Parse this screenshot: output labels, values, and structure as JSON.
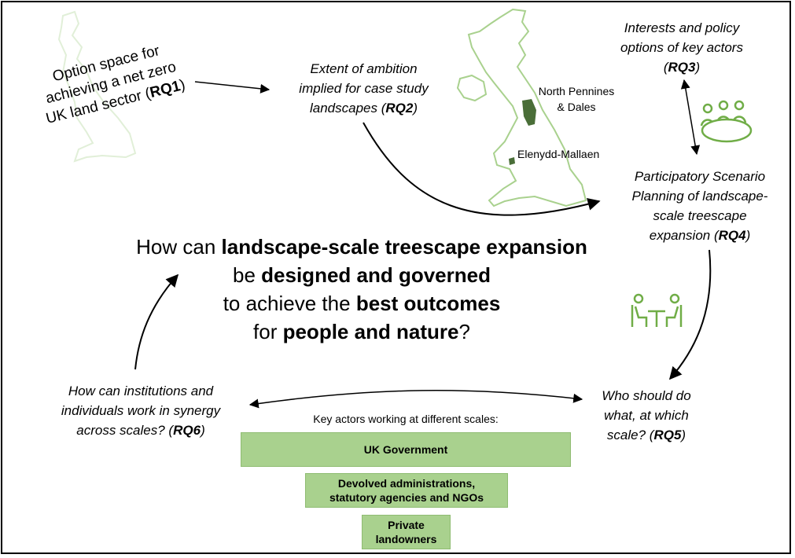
{
  "rq1": {
    "line1": "Option space for",
    "line2": "achieving a net zero",
    "line3_pre": "UK land sector (",
    "line3_bold": "RQ1",
    "line3_post": ")"
  },
  "rq2": {
    "line1": "Extent of ambition",
    "line2": "implied for case study",
    "line3_pre": "landscapes (",
    "line3_bold": "RQ2",
    "line3_post": ")"
  },
  "rq3": {
    "line1": "Interests and policy",
    "line2": "options of key actors",
    "line3_pre": "(",
    "line3_bold": "RQ3",
    "line3_post": ")"
  },
  "rq4": {
    "line1": "Participatory Scenario",
    "line2": "Planning of landscape-",
    "line3": "scale treescape",
    "line4_pre": "expansion (",
    "line4_bold": "RQ4",
    "line4_post": ")"
  },
  "rq5": {
    "line1": "Who should do",
    "line2": "what, at which",
    "line3_pre": "scale? (",
    "line3_bold": "RQ5",
    "line3_post": ")"
  },
  "rq6": {
    "line1": "How can institutions and",
    "line2": "individuals work in synergy",
    "line3_pre": "across scales? (",
    "line3_bold": "RQ6",
    "line3_post": ")"
  },
  "map_labels": {
    "north": "North Pennines",
    "north2": "& Dales",
    "wales": "Elenydd-Mallaen"
  },
  "central": {
    "l1_pre": "How can ",
    "l1_bold": "landscape-scale treescape expansion",
    "l2_pre": "be ",
    "l2_bold": "designed and governed",
    "l3_pre": "to achieve the ",
    "l3_bold": "best outcomes",
    "l4_pre": "for ",
    "l4_bold": "people and nature",
    "l4_post": "?"
  },
  "actors": {
    "title": "Key actors working at different scales:",
    "level1": "UK Government",
    "level2_line1": "Devolved administrations,",
    "level2_line2": "statutory agencies and NGOs",
    "level3_line1": "Private",
    "level3_line2": "landowners"
  },
  "colors": {
    "green_fill": "#a9d18e",
    "map_outline": "#a9d18e",
    "region_dark": "#4a6e38",
    "icon_green": "#70ad47"
  },
  "icons": [
    "meeting-table-icon",
    "two-people-table-icon"
  ]
}
